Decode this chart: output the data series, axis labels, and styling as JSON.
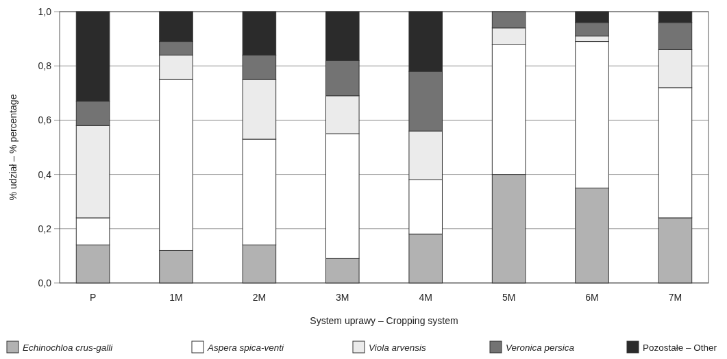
{
  "chart_data": {
    "type": "bar",
    "stacked": true,
    "xlabel": "System uprawy – Cropping system",
    "ylabel": "% udział – % percentage",
    "categories": [
      "P",
      "1M",
      "2M",
      "3M",
      "4M",
      "5M",
      "6M",
      "7M"
    ],
    "series": [
      {
        "name": "Echinochloa crus-galli",
        "color": "#b2b2b2",
        "values": [
          0.14,
          0.12,
          0.14,
          0.09,
          0.18,
          0.4,
          0.35,
          0.24
        ]
      },
      {
        "name": "Aspera spica-venti",
        "color": "#ffffff",
        "values": [
          0.1,
          0.63,
          0.39,
          0.46,
          0.2,
          0.48,
          0.54,
          0.48
        ]
      },
      {
        "name": "Viola arvensis",
        "color": "#ebebeb",
        "values": [
          0.34,
          0.09,
          0.22,
          0.14,
          0.18,
          0.06,
          0.02,
          0.14
        ]
      },
      {
        "name": "Veronica persica",
        "color": "#737373",
        "values": [
          0.09,
          0.05,
          0.09,
          0.13,
          0.22,
          0.06,
          0.05,
          0.1
        ]
      },
      {
        "name": "Pozostałe – Other",
        "color": "#2b2b2b",
        "values": [
          0.33,
          0.11,
          0.16,
          0.18,
          0.22,
          0,
          0.04,
          0.04
        ]
      }
    ],
    "ylim": [
      0,
      1
    ],
    "yticks": [
      {
        "value": 0,
        "label": "0,0"
      },
      {
        "value": 0.2,
        "label": "0,2"
      },
      {
        "value": 0.4,
        "label": "0,4"
      },
      {
        "value": 0.6,
        "label": "0,6"
      },
      {
        "value": 0.8,
        "label": "0,8"
      },
      {
        "value": 1,
        "label": "1,0"
      }
    ],
    "grid": "y",
    "legend": "bottom"
  }
}
